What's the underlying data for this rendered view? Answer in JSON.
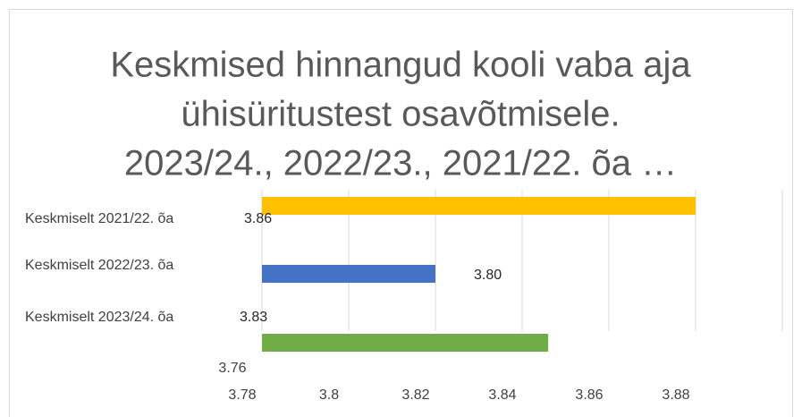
{
  "chart_data": {
    "type": "bar",
    "orientation": "horizontal",
    "title": [
      "Keskmised hinnangud kooli vaba aja",
      "ühisüritustest osavõtmisele.",
      "2023/24., 2022/23., 2021/22. õa …"
    ],
    "categories": [
      "Keskmiselt 2021/22. õa",
      "Keskmiselt 2022/23. õa",
      "Keskmiselt 2023/24. õa"
    ],
    "values": [
      3.86,
      3.8,
      3.826
    ],
    "value_labels": [
      "3.86",
      "3.80",
      "3.83"
    ],
    "colors": [
      "#ffc000",
      "#4472c4",
      "#70ad47"
    ],
    "xlim": [
      3.76,
      3.88
    ],
    "xticks": [
      3.76,
      3.78,
      3.8,
      3.82,
      3.84,
      3.86,
      3.88
    ],
    "grid": true
  }
}
